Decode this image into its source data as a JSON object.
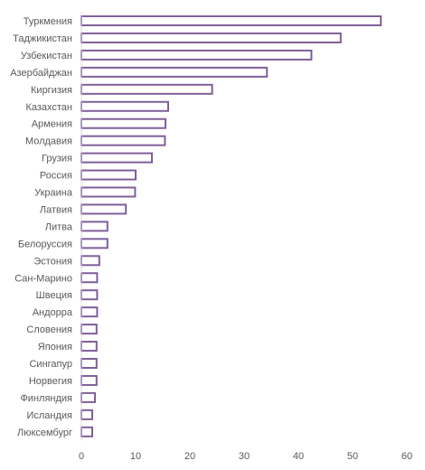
{
  "chart_data": {
    "type": "bar",
    "orientation": "horizontal",
    "title": "",
    "xlabel": "",
    "ylabel": "",
    "categories": [
      "Туркмения",
      "Таджикистан",
      "Узбекистан",
      "Азербайджан",
      "Киргизия",
      "Казахстан",
      "Армения",
      "Молдавия",
      "Грузия",
      "Россия",
      "Украина",
      "Латвия",
      "Литва",
      "Белоруссия",
      "Эстония",
      "Сан-Марино",
      "Швеция",
      "Андорра",
      "Словения",
      "Япония",
      "Сингапур",
      "Норвегия",
      "Финляндия",
      "Исландия",
      "Люксембург"
    ],
    "values": [
      55.2,
      47.8,
      42.4,
      34.2,
      24.1,
      16.0,
      15.5,
      15.4,
      13.0,
      10.0,
      9.9,
      8.2,
      4.8,
      4.8,
      3.3,
      2.9,
      2.9,
      2.9,
      2.8,
      2.8,
      2.8,
      2.8,
      2.5,
      2.0,
      2.0
    ],
    "xlim": [
      0,
      60
    ],
    "x_ticks": [
      "0",
      "10",
      "20",
      "30",
      "40",
      "50",
      "60"
    ],
    "grid": false,
    "bar_fill": "#ffffff",
    "bar_stroke": "#7f5f9a"
  }
}
